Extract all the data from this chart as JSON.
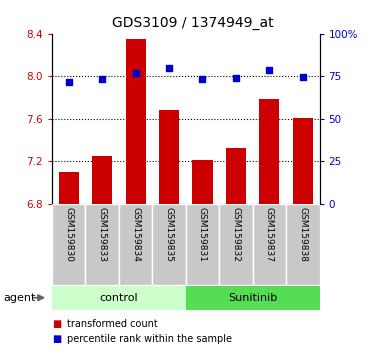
{
  "title": "GDS3109 / 1374949_at",
  "samples": [
    "GSM159830",
    "GSM159833",
    "GSM159834",
    "GSM159835",
    "GSM159831",
    "GSM159832",
    "GSM159837",
    "GSM159838"
  ],
  "bar_values": [
    7.1,
    7.25,
    8.35,
    7.68,
    7.21,
    7.32,
    7.78,
    7.61
  ],
  "scatter_values": [
    7.94,
    7.97,
    8.03,
    8.08,
    7.97,
    7.98,
    8.06,
    7.99
  ],
  "bar_color": "#cc0000",
  "scatter_color": "#0000cc",
  "ylim_left": [
    6.8,
    8.4
  ],
  "ylim_right": [
    0,
    100
  ],
  "yticks_left": [
    6.8,
    7.2,
    7.6,
    8.0,
    8.4
  ],
  "yticks_right": [
    0,
    25,
    50,
    75,
    100
  ],
  "grid_yticks": [
    7.2,
    7.6,
    8.0
  ],
  "groups": [
    {
      "label": "control",
      "indices": [
        0,
        1,
        2,
        3
      ],
      "color": "#ccffcc"
    },
    {
      "label": "Sunitinib",
      "indices": [
        4,
        5,
        6,
        7
      ],
      "color": "#55dd55"
    }
  ],
  "agent_label": "agent",
  "legend_bar_label": "transformed count",
  "legend_scatter_label": "percentile rank within the sample",
  "bar_bottom": 6.8,
  "tick_label_color_left": "#cc0000",
  "tick_label_color_right": "#0000cc",
  "sample_box_color": "#c8c8c8",
  "bar_width": 0.6
}
